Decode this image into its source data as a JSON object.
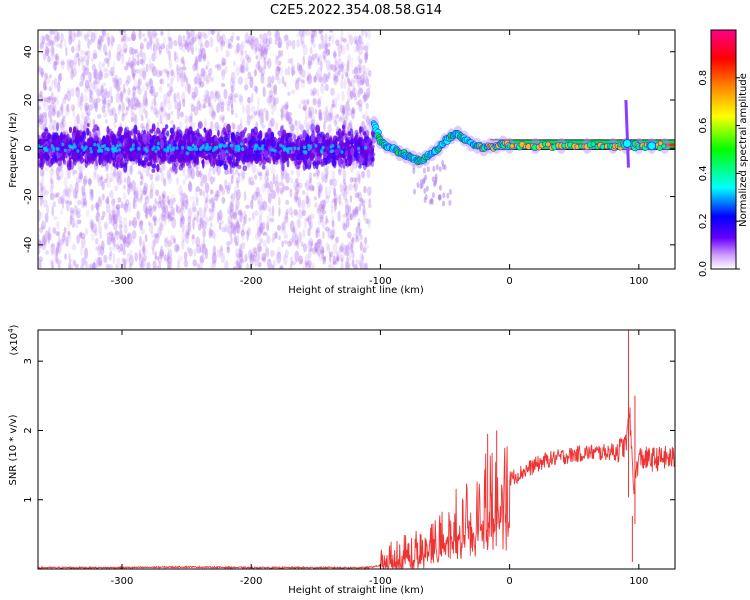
{
  "title": "C2E5.2022.354.08.58.G14",
  "chart_data": [
    {
      "type": "heatmap",
      "xlabel": "Height of straight line (km)",
      "ylabel": "Frequency (Hz)",
      "xlim": [
        -365,
        128
      ],
      "ylim": [
        -50,
        49
      ],
      "xticks": [
        -300,
        -200,
        -100,
        0,
        100
      ],
      "yticks": [
        -40,
        -20,
        0,
        20,
        40
      ],
      "grid": false,
      "colorbar": {
        "label": "Normalized spectral amplitude",
        "ticks": [
          0.0,
          0.2,
          0.4,
          0.6,
          0.8
        ],
        "ticklabels": [
          "0.0",
          "0.2",
          "0.4",
          "0.6",
          "0.8"
        ],
        "range": [
          0,
          1
        ],
        "colormap": [
          "#ffffff",
          "#6600ff",
          "#0000ff",
          "#00ffff",
          "#00ff00",
          "#ffff00",
          "#ff8800",
          "#ff0000",
          "#ff0088"
        ]
      },
      "frequency_track": {
        "x": [
          -105,
          -100,
          -95,
          -90,
          -85,
          -80,
          -75,
          -70,
          -65,
          -60,
          -55,
          -50,
          -45,
          -40,
          -35,
          -30,
          -25,
          -20,
          -15,
          -10,
          -5,
          0,
          20,
          40,
          60,
          80,
          90,
          100,
          110,
          120
        ],
        "y": [
          10,
          3,
          1,
          0,
          -2,
          -3,
          -4,
          -5,
          -4,
          -2,
          0,
          3,
          5,
          6,
          4,
          2,
          1,
          0,
          1,
          1,
          2,
          1,
          1,
          1,
          1,
          1,
          1,
          1,
          1,
          1
        ]
      }
    },
    {
      "type": "line",
      "xlabel": "Height of straight line (km)",
      "ylabel": "SNR (10 * v/v)",
      "yscale_label": "(x10^4)",
      "yscale_base": "(x10",
      "yscale_exp": "4",
      "xlim": [
        -365,
        128
      ],
      "ylim": [
        0,
        3.45
      ],
      "xticks": [
        -300,
        -200,
        -100,
        0,
        100
      ],
      "yticks": [
        1,
        2,
        3
      ],
      "color": "#ee3333",
      "series": [
        {
          "x": [
            -365,
            -300,
            -250,
            -200,
            -150,
            -110,
            -100,
            -90,
            -80,
            -70,
            -60,
            -50,
            -40,
            -35,
            -30,
            -25,
            -20,
            -15,
            -10,
            -5,
            0,
            10,
            20,
            30,
            40,
            50,
            60,
            70,
            80,
            85,
            90,
            93,
            96,
            100,
            110,
            120,
            128
          ],
          "y": [
            0.02,
            0.02,
            0.03,
            0.02,
            0.02,
            0.02,
            0.05,
            0.12,
            0.22,
            0.25,
            0.35,
            0.55,
            0.7,
            0.65,
            0.9,
            0.8,
            1.05,
            1.1,
            1.2,
            1.25,
            1.3,
            1.4,
            1.5,
            1.58,
            1.62,
            1.65,
            1.68,
            1.68,
            1.7,
            1.72,
            1.8,
            2.2,
            1.2,
            1.6,
            1.58,
            1.6,
            1.6
          ]
        }
      ],
      "peaks": {
        "x": [
          -17,
          -10,
          92,
          95,
          97
        ],
        "y": [
          1.95,
          2.0,
          3.45,
          0.1,
          2.5
        ]
      }
    }
  ]
}
